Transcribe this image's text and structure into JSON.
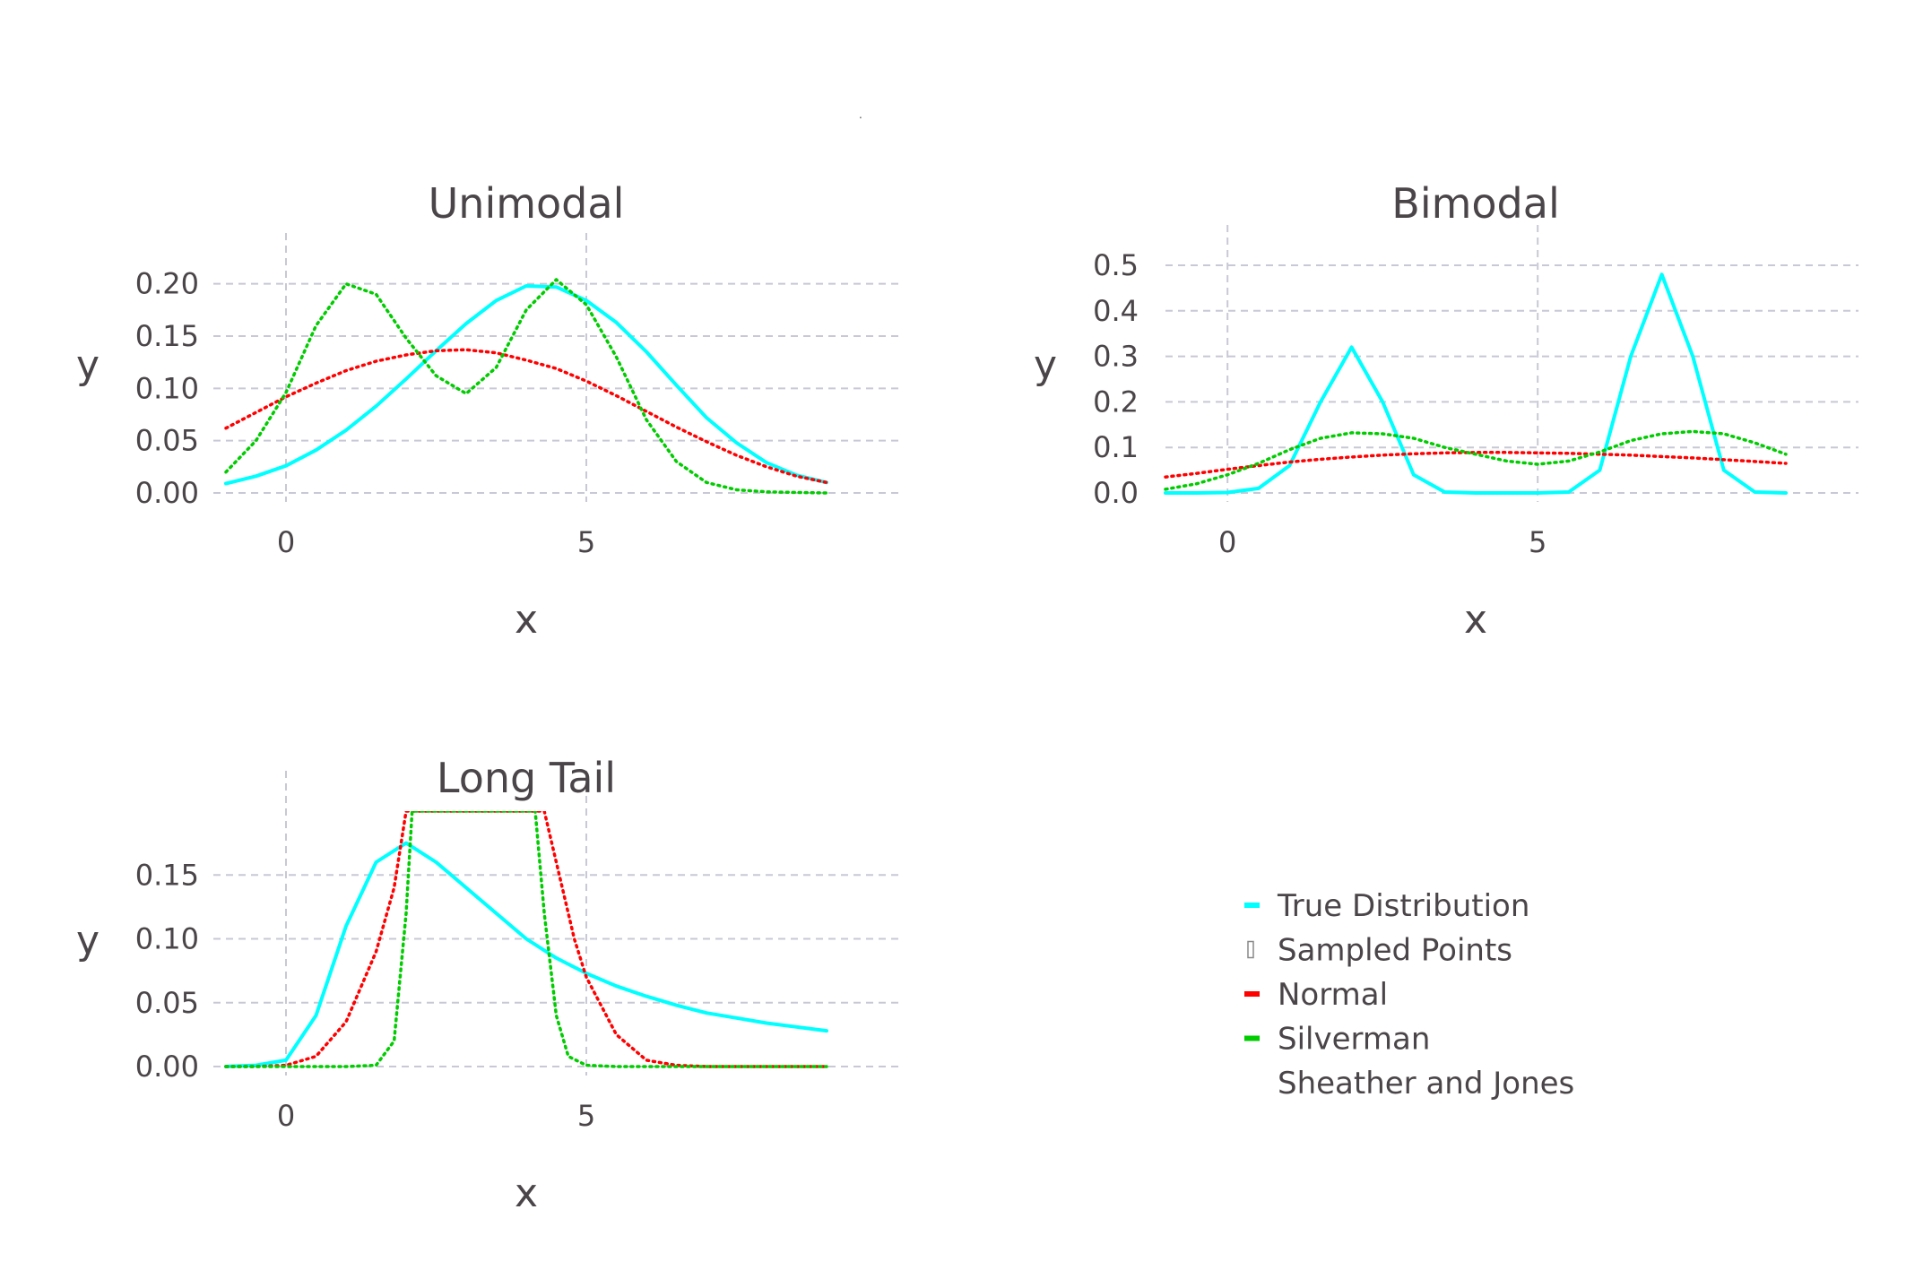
{
  "figure": {
    "tiny_mark": "."
  },
  "colors": {
    "true_distribution": "#00FFFF",
    "sampled_points": "#888888",
    "normal": "#FF0000",
    "silverman": "#00CC00",
    "text": "#4a4548",
    "grid": "#c8c8d6"
  },
  "legend": {
    "position": "bottom-right",
    "entries": [
      {
        "label": "True Distribution",
        "color": "#00FFFF",
        "marker": "line"
      },
      {
        "label": "Sampled Points",
        "color": "#888888",
        "marker": "rug"
      },
      {
        "label": "Normal",
        "color": "#FF0000",
        "marker": "line"
      },
      {
        "label": "Silverman",
        "color": "#00CC00",
        "marker": "line"
      },
      {
        "label": "Sheather and Jones",
        "color": "",
        "marker": "none"
      }
    ]
  },
  "chart_data": [
    {
      "type": "line",
      "title": "Unimodal",
      "xlabel": "x",
      "ylabel": "y",
      "xlim": [
        -1,
        9
      ],
      "ylim": [
        0,
        0.21
      ],
      "xticks": [
        0,
        5
      ],
      "xtick_labels": [
        "0",
        "5"
      ],
      "yticks": [
        0,
        0.05,
        0.1,
        0.15,
        0.2
      ],
      "ytick_labels": [
        "0.00",
        "0.05",
        "0.10",
        "0.15",
        "0.20"
      ],
      "grid": true,
      "x": [
        -1,
        -0.5,
        0,
        0.5,
        1,
        1.5,
        2,
        2.5,
        3,
        3.5,
        4,
        4.5,
        5,
        5.5,
        6,
        6.5,
        7,
        7.5,
        8,
        8.5,
        9
      ],
      "series": [
        {
          "name": "True Distribution",
          "color": "#00FFFF",
          "style": "solid",
          "values": [
            0.009,
            0.016,
            0.026,
            0.041,
            0.06,
            0.083,
            0.109,
            0.136,
            0.162,
            0.184,
            0.198,
            0.197,
            0.184,
            0.163,
            0.135,
            0.103,
            0.072,
            0.048,
            0.029,
            0.017,
            0.01
          ]
        },
        {
          "name": "Normal",
          "color": "#FF0000",
          "style": "dotted",
          "values": [
            0.062,
            0.077,
            0.092,
            0.105,
            0.117,
            0.126,
            0.132,
            0.136,
            0.137,
            0.134,
            0.127,
            0.119,
            0.107,
            0.093,
            0.078,
            0.063,
            0.049,
            0.036,
            0.025,
            0.016,
            0.01
          ]
        },
        {
          "name": "Silverman",
          "color": "#00CC00",
          "style": "dotted",
          "values": [
            0.02,
            0.05,
            0.096,
            0.16,
            0.2,
            0.19,
            0.148,
            0.112,
            0.095,
            0.12,
            0.175,
            0.204,
            0.18,
            0.13,
            0.07,
            0.03,
            0.01,
            0.003,
            0.001,
            0.0005,
            0.0
          ]
        }
      ]
    },
    {
      "type": "line",
      "title": "Bimodal",
      "xlabel": "x",
      "ylabel": "y",
      "xlim": [
        -1,
        9
      ],
      "ylim": [
        0,
        0.5
      ],
      "xticks": [
        0,
        5
      ],
      "xtick_labels": [
        "0",
        "5"
      ],
      "yticks": [
        0,
        0.1,
        0.2,
        0.3,
        0.4,
        0.5
      ],
      "ytick_labels": [
        "0.0",
        "0.1",
        "0.2",
        "0.3",
        "0.4",
        "0.5"
      ],
      "grid": true,
      "x": [
        -1,
        -0.5,
        0,
        0.5,
        1,
        1.5,
        2,
        2.5,
        3,
        3.5,
        4,
        4.5,
        5,
        5.5,
        6,
        6.5,
        7,
        7.5,
        8,
        8.5,
        9
      ],
      "series": [
        {
          "name": "True Distribution",
          "color": "#00FFFF",
          "style": "solid",
          "values": [
            0.0,
            0.0,
            0.001,
            0.01,
            0.06,
            0.2,
            0.32,
            0.2,
            0.04,
            0.002,
            0.0,
            0.0,
            0.0,
            0.002,
            0.05,
            0.3,
            0.48,
            0.3,
            0.05,
            0.002,
            0.0
          ]
        },
        {
          "name": "Normal",
          "color": "#FF0000",
          "style": "dotted",
          "values": [
            0.035,
            0.043,
            0.052,
            0.06,
            0.068,
            0.074,
            0.079,
            0.083,
            0.086,
            0.088,
            0.089,
            0.089,
            0.088,
            0.087,
            0.085,
            0.083,
            0.08,
            0.077,
            0.073,
            0.069,
            0.065
          ]
        },
        {
          "name": "Silverman",
          "color": "#00CC00",
          "style": "dotted",
          "values": [
            0.008,
            0.02,
            0.04,
            0.065,
            0.095,
            0.12,
            0.132,
            0.13,
            0.12,
            0.1,
            0.085,
            0.07,
            0.063,
            0.07,
            0.09,
            0.115,
            0.13,
            0.135,
            0.13,
            0.11,
            0.085
          ]
        }
      ]
    },
    {
      "type": "line",
      "title": "Long Tail",
      "xlabel": "x",
      "ylabel": "y",
      "xlim": [
        -1,
        9
      ],
      "ylim": [
        0,
        0.2
      ],
      "xticks": [
        0,
        5
      ],
      "xtick_labels": [
        "0",
        "5"
      ],
      "yticks": [
        0,
        0.05,
        0.1,
        0.15
      ],
      "ytick_labels": [
        "0.00",
        "0.05",
        "0.10",
        "0.15"
      ],
      "grid": true,
      "x": [
        -1,
        -0.5,
        0,
        0.5,
        1,
        1.5,
        2,
        2.5,
        3,
        3.5,
        4,
        4.5,
        5,
        5.5,
        6,
        6.5,
        7,
        7.5,
        8,
        8.5,
        9
      ],
      "series": [
        {
          "name": "True Distribution",
          "color": "#00FFFF",
          "style": "solid",
          "values": [
            0.0,
            0.001,
            0.005,
            0.04,
            0.11,
            0.16,
            0.175,
            0.16,
            0.14,
            0.12,
            0.1,
            0.085,
            0.073,
            0.063,
            0.055,
            0.048,
            0.042,
            0.038,
            0.034,
            0.031,
            0.028
          ]
        },
        {
          "name": "Normal",
          "color": "#FF0000",
          "style": "dotted",
          "x": [
            -1,
            -0.5,
            0,
            0.5,
            1,
            1.5,
            1.8,
            2.0,
            4.3,
            4.5,
            4.8,
            5.0,
            5.5,
            6,
            6.5,
            7,
            8,
            9
          ],
          "values": [
            0.0,
            0.0,
            0.001,
            0.008,
            0.035,
            0.09,
            0.14,
            0.2,
            0.2,
            0.16,
            0.1,
            0.07,
            0.025,
            0.005,
            0.001,
            0.0,
            0.0,
            0.0
          ]
        },
        {
          "name": "Silverman",
          "color": "#00CC00",
          "style": "dotted",
          "x": [
            -1,
            0,
            1,
            1.5,
            1.8,
            2.0,
            2.1,
            4.15,
            4.3,
            4.5,
            4.7,
            5.0,
            5.5,
            6,
            7,
            8,
            9
          ],
          "values": [
            0.0,
            0.0,
            0.0,
            0.001,
            0.02,
            0.12,
            0.2,
            0.2,
            0.12,
            0.04,
            0.008,
            0.001,
            0.0,
            0.0,
            0.0,
            0.0,
            0.0
          ]
        }
      ]
    }
  ]
}
